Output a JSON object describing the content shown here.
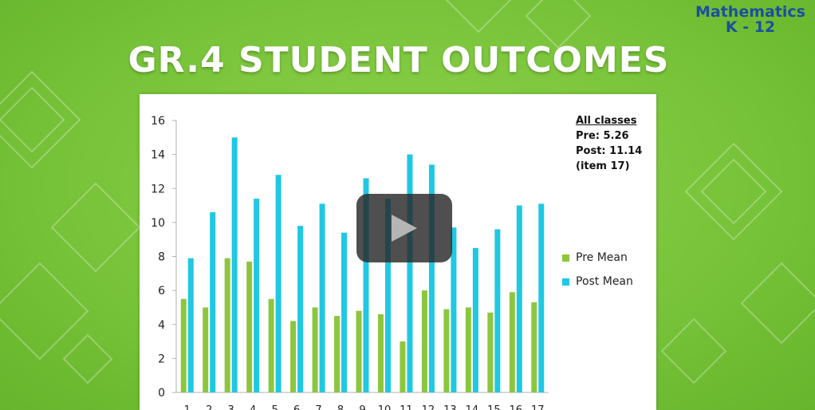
{
  "brand": {
    "line1": "Mathematics",
    "line2": "K - 12"
  },
  "slide_title": "GR.4 STUDENT OUTCOMES",
  "notes": {
    "heading": "All classes",
    "pre": "Pre: 5.26",
    "post": "Post: 11.14",
    "item": "(item 17)"
  },
  "colors": {
    "pre": "#8cc63f",
    "post": "#1fc8e3",
    "background": "#7ac23c",
    "title": "#ffffff",
    "brand": "#1b4f9e"
  },
  "chart_data": {
    "type": "bar",
    "categories": [
      "1",
      "2",
      "3",
      "4",
      "5",
      "6",
      "7",
      "8",
      "9",
      "10",
      "11",
      "12",
      "13",
      "14",
      "15",
      "16",
      "17"
    ],
    "series": [
      {
        "name": "Pre Mean",
        "values": [
          5.5,
          5.0,
          7.9,
          7.7,
          5.5,
          4.2,
          5.0,
          4.5,
          4.8,
          4.6,
          3.0,
          6.0,
          4.9,
          5.0,
          4.7,
          5.9,
          5.3
        ]
      },
      {
        "name": "Post Mean",
        "values": [
          7.9,
          10.6,
          15.0,
          11.4,
          12.8,
          9.8,
          11.1,
          9.4,
          12.6,
          11.4,
          14.0,
          13.4,
          9.7,
          8.5,
          9.6,
          11.0,
          11.1
        ]
      }
    ],
    "ylim": [
      0,
      16
    ],
    "yticks": [
      0,
      2,
      4,
      6,
      8,
      10,
      12,
      14,
      16
    ],
    "grid": false,
    "legend": "right"
  },
  "player": {
    "control": "play"
  }
}
